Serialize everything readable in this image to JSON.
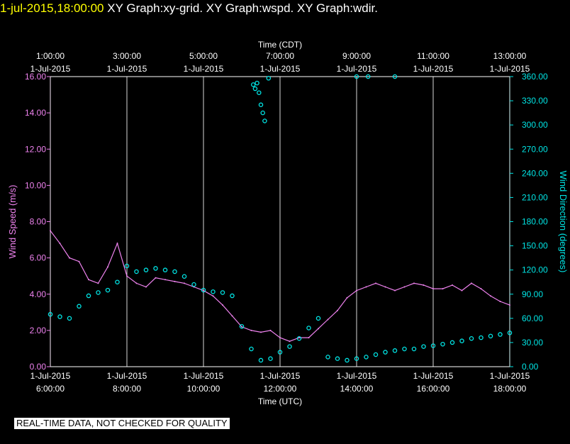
{
  "header": {
    "timestamp": "1-jul-2015,18:00:00",
    "titles": "XY Graph:xy-grid.  XY Graph:wspd.  XY Graph:wdir."
  },
  "footer": {
    "notice": "REAL-TIME DATA, NOT CHECKED FOR QUALITY"
  },
  "colors": {
    "speed": "#ee82ee",
    "direction": "#00e5e5",
    "grid": "#ffffff",
    "background": "#000000"
  },
  "chart_data": {
    "type": "line",
    "top_axis": {
      "title": "Time (CDT)",
      "ticks": [
        {
          "time": "1:00:00",
          "date": "1-Jul-2015"
        },
        {
          "time": "3:00:00",
          "date": "1-Jul-2015"
        },
        {
          "time": "5:00:00",
          "date": "1-Jul-2015"
        },
        {
          "time": "7:00:00",
          "date": "1-Jul-2015"
        },
        {
          "time": "9:00:00",
          "date": "1-Jul-2015"
        },
        {
          "time": "11:00:00",
          "date": "1-Jul-2015"
        },
        {
          "time": "13:00:00",
          "date": "1-Jul-2015"
        }
      ]
    },
    "bottom_axis": {
      "title": "Time (UTC)",
      "ticks": [
        {
          "date": "1-Jul-2015",
          "time": "6:00:00"
        },
        {
          "date": "1-Jul-2015",
          "time": "8:00:00"
        },
        {
          "date": "1-Jul-2015",
          "time": "10:00:00"
        },
        {
          "date": "1-Jul-2015",
          "time": "12:00:00"
        },
        {
          "date": "1-Jul-2015",
          "time": "14:00:00"
        },
        {
          "date": "1-Jul-2015",
          "time": "16:00:00"
        },
        {
          "date": "1-Jul-2015",
          "time": "18:00:00"
        }
      ],
      "range_hours_utc": [
        6,
        18
      ]
    },
    "left_axis": {
      "title": "Wind Speed (m/s)",
      "range": [
        0,
        16
      ],
      "ticks": [
        "0.00",
        "2.00",
        "4.00",
        "6.00",
        "8.00",
        "10.00",
        "12.00",
        "14.00",
        "16.00"
      ]
    },
    "right_axis": {
      "title": "Wind Direction (degrees)",
      "range": [
        0,
        360
      ],
      "ticks": [
        "0.00",
        "30.00",
        "60.00",
        "90.00",
        "120.00",
        "150.00",
        "180.00",
        "210.00",
        "240.00",
        "270.00",
        "300.00",
        "330.00",
        "360.00"
      ]
    },
    "grid": "vertical lines at bottom-axis ticks",
    "series": [
      {
        "name": "wspd",
        "style": "line",
        "x_hours_utc": [
          6.0,
          6.25,
          6.5,
          6.75,
          7.0,
          7.25,
          7.5,
          7.75,
          8.0,
          8.25,
          8.5,
          8.75,
          9.0,
          9.25,
          9.5,
          9.75,
          10.0,
          10.25,
          10.5,
          10.75,
          11.0,
          11.25,
          11.5,
          11.75,
          12.0,
          12.25,
          12.5,
          12.75,
          13.0,
          13.25,
          13.5,
          13.75,
          14.0,
          14.25,
          14.5,
          14.75,
          15.0,
          15.25,
          15.5,
          15.75,
          16.0,
          16.25,
          16.5,
          16.75,
          17.0,
          17.25,
          17.5,
          17.75,
          18.0
        ],
        "values": [
          7.5,
          6.8,
          6.0,
          5.8,
          4.8,
          4.6,
          5.5,
          6.8,
          5.0,
          4.6,
          4.4,
          4.9,
          4.8,
          4.7,
          4.6,
          4.4,
          4.2,
          3.9,
          3.4,
          2.8,
          2.2,
          2.0,
          1.9,
          2.0,
          1.6,
          1.4,
          1.6,
          1.6,
          2.1,
          2.6,
          3.1,
          3.8,
          4.2,
          4.4,
          4.6,
          4.4,
          4.2,
          4.4,
          4.6,
          4.5,
          4.3,
          4.3,
          4.5,
          4.2,
          4.6,
          4.3,
          3.9,
          3.6,
          3.4
        ]
      },
      {
        "name": "wdir",
        "style": "scatter",
        "x_hours_utc": [
          6.0,
          6.25,
          6.5,
          6.75,
          7.0,
          7.25,
          7.5,
          7.75,
          8.0,
          8.25,
          8.5,
          8.75,
          9.0,
          9.25,
          9.5,
          9.75,
          10.0,
          10.25,
          10.5,
          10.75,
          11.0,
          11.25,
          11.5,
          11.75,
          12.0,
          12.25,
          12.5,
          12.75,
          13.0,
          13.25,
          13.5,
          13.75,
          14.0,
          14.25,
          14.5,
          14.75,
          15.0,
          15.25,
          15.5,
          15.75,
          16.0,
          16.25,
          16.5,
          16.75,
          17.0,
          17.25,
          17.5,
          17.75,
          18.0
        ],
        "values": [
          65,
          62,
          60,
          75,
          88,
          92,
          95,
          105,
          125,
          118,
          120,
          122,
          120,
          118,
          112,
          102,
          95,
          93,
          92,
          88,
          50,
          22,
          8,
          10,
          18,
          25,
          35,
          48,
          60,
          12,
          10,
          8,
          10,
          12,
          15,
          18,
          20,
          22,
          22,
          25,
          26,
          28,
          30,
          32,
          35,
          36,
          38,
          40,
          42
        ]
      },
      {
        "name": "wdir-wrap",
        "style": "scatter",
        "x_hours_utc": [
          11.3,
          11.35,
          11.4,
          11.45,
          11.5,
          11.55,
          11.6,
          11.7,
          14.0,
          14.3,
          15.0
        ],
        "values": [
          350,
          345,
          352,
          340,
          325,
          315,
          305,
          358,
          360,
          360,
          360
        ]
      }
    ]
  }
}
